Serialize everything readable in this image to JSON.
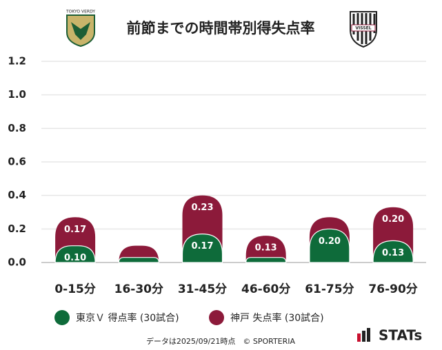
{
  "chart_data": {
    "type": "stacked-bar",
    "title": "前節までの時間帯別得失点率",
    "logos": {
      "home": "TOKYO VERDY",
      "away": "VISSEL",
      "brand": "STATs"
    },
    "footer": "データは2025/09/21時点　© SPORTERIA",
    "categories": [
      "0-15分",
      "16-30分",
      "31-45分",
      "46-60分",
      "61-75分",
      "76-90分"
    ],
    "series": [
      {
        "name": "東京Ｖ 得点率 (30試合)",
        "color": "#0e6b3a",
        "values": [
          0.1,
          0.03,
          0.17,
          0.03,
          0.2,
          0.13
        ],
        "value_labels": [
          "0.10",
          null,
          "0.17",
          null,
          "0.20",
          "0.13"
        ]
      },
      {
        "name": "神戸 失点率 (30試合)",
        "color": "#8c1a3a",
        "values": [
          0.17,
          0.07,
          0.23,
          0.13,
          0.07,
          0.2
        ],
        "value_labels": [
          "0.17",
          null,
          "0.23",
          "0.13",
          null,
          "0.20"
        ]
      }
    ],
    "ylim": [
      0,
      1.2
    ],
    "yticks": [
      {
        "value": 0,
        "label": "0.0"
      },
      0.2,
      0.4,
      0.6,
      0.8,
      {
        "value": 1,
        "label": "1.0"
      },
      1.2
    ],
    "grid": true
  }
}
